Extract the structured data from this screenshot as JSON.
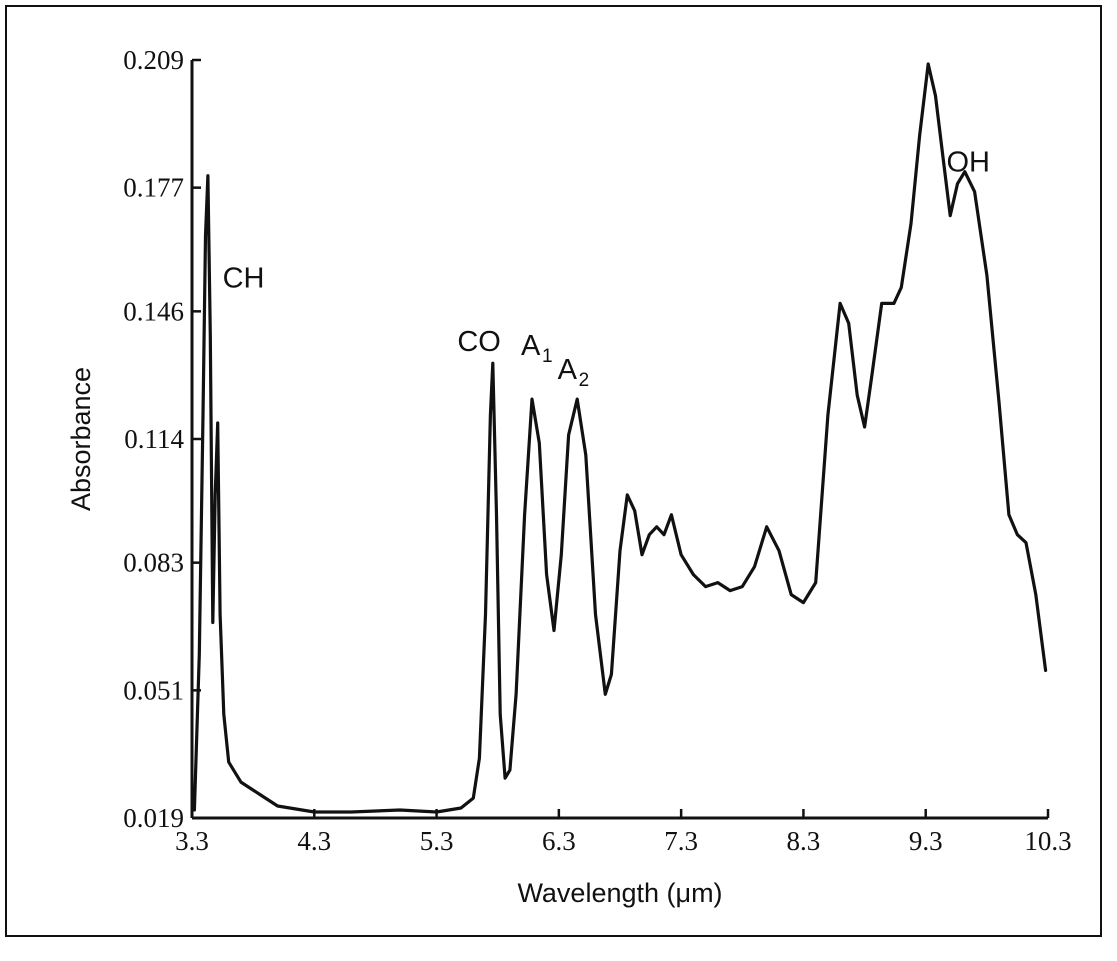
{
  "chart_data": {
    "type": "line",
    "title": "",
    "xlabel": "Wavelength (μm)",
    "ylabel": "Absorbance",
    "xlim": [
      3.3,
      10.3
    ],
    "ylim": [
      0.019,
      0.209
    ],
    "xticks": [
      "3.3",
      "4.3",
      "5.3",
      "6.3",
      "7.3",
      "8.3",
      "9.3",
      "10.3"
    ],
    "yticks": [
      "0.019",
      "0.051",
      "0.083",
      "0.114",
      "0.146",
      "0.177",
      "0.209"
    ],
    "grid": false,
    "series": [
      {
        "color": "#111111",
        "points": [
          [
            3.32,
            0.021
          ],
          [
            3.36,
            0.06
          ],
          [
            3.39,
            0.12
          ],
          [
            3.41,
            0.165
          ],
          [
            3.43,
            0.18
          ],
          [
            3.45,
            0.14
          ],
          [
            3.47,
            0.068
          ],
          [
            3.49,
            0.1
          ],
          [
            3.51,
            0.118
          ],
          [
            3.53,
            0.07
          ],
          [
            3.56,
            0.045
          ],
          [
            3.6,
            0.033
          ],
          [
            3.7,
            0.028
          ],
          [
            3.85,
            0.025
          ],
          [
            4.0,
            0.022
          ],
          [
            4.3,
            0.0205
          ],
          [
            4.6,
            0.0205
          ],
          [
            5.0,
            0.021
          ],
          [
            5.3,
            0.0205
          ],
          [
            5.5,
            0.0215
          ],
          [
            5.6,
            0.024
          ],
          [
            5.65,
            0.034
          ],
          [
            5.7,
            0.07
          ],
          [
            5.74,
            0.12
          ],
          [
            5.76,
            0.133
          ],
          [
            5.79,
            0.095
          ],
          [
            5.82,
            0.045
          ],
          [
            5.86,
            0.029
          ],
          [
            5.9,
            0.031
          ],
          [
            5.95,
            0.05
          ],
          [
            6.02,
            0.095
          ],
          [
            6.08,
            0.124
          ],
          [
            6.14,
            0.113
          ],
          [
            6.2,
            0.08
          ],
          [
            6.26,
            0.066
          ],
          [
            6.32,
            0.085
          ],
          [
            6.38,
            0.115
          ],
          [
            6.45,
            0.124
          ],
          [
            6.52,
            0.11
          ],
          [
            6.6,
            0.07
          ],
          [
            6.68,
            0.05
          ],
          [
            6.73,
            0.055
          ],
          [
            6.8,
            0.086
          ],
          [
            6.86,
            0.1
          ],
          [
            6.92,
            0.096
          ],
          [
            6.98,
            0.085
          ],
          [
            7.04,
            0.09
          ],
          [
            7.1,
            0.092
          ],
          [
            7.16,
            0.09
          ],
          [
            7.22,
            0.095
          ],
          [
            7.3,
            0.085
          ],
          [
            7.4,
            0.08
          ],
          [
            7.5,
            0.077
          ],
          [
            7.6,
            0.078
          ],
          [
            7.7,
            0.076
          ],
          [
            7.8,
            0.077
          ],
          [
            7.9,
            0.082
          ],
          [
            8.0,
            0.092
          ],
          [
            8.1,
            0.086
          ],
          [
            8.2,
            0.075
          ],
          [
            8.3,
            0.073
          ],
          [
            8.4,
            0.078
          ],
          [
            8.5,
            0.12
          ],
          [
            8.6,
            0.148
          ],
          [
            8.67,
            0.143
          ],
          [
            8.74,
            0.125
          ],
          [
            8.8,
            0.117
          ],
          [
            8.86,
            0.13
          ],
          [
            8.94,
            0.148
          ],
          [
            9.04,
            0.148
          ],
          [
            9.1,
            0.152
          ],
          [
            9.18,
            0.168
          ],
          [
            9.25,
            0.19
          ],
          [
            9.32,
            0.208
          ],
          [
            9.38,
            0.2
          ],
          [
            9.44,
            0.185
          ],
          [
            9.5,
            0.17
          ],
          [
            9.56,
            0.178
          ],
          [
            9.62,
            0.181
          ],
          [
            9.7,
            0.176
          ],
          [
            9.8,
            0.155
          ],
          [
            9.9,
            0.123
          ],
          [
            9.98,
            0.095
          ],
          [
            10.05,
            0.09
          ],
          [
            10.12,
            0.088
          ],
          [
            10.2,
            0.075
          ],
          [
            10.28,
            0.056
          ]
        ]
      }
    ],
    "annotations": [
      {
        "text": "CH",
        "sub": "",
        "x": 3.55,
        "y": 0.152
      },
      {
        "text": "CO",
        "sub": "",
        "x": 5.47,
        "y": 0.136
      },
      {
        "text": "A",
        "sub": "1",
        "x": 5.99,
        "y": 0.135
      },
      {
        "text": "A",
        "sub": "2",
        "x": 6.29,
        "y": 0.129
      },
      {
        "text": "OH",
        "sub": "",
        "x": 9.47,
        "y": 0.181
      }
    ]
  }
}
